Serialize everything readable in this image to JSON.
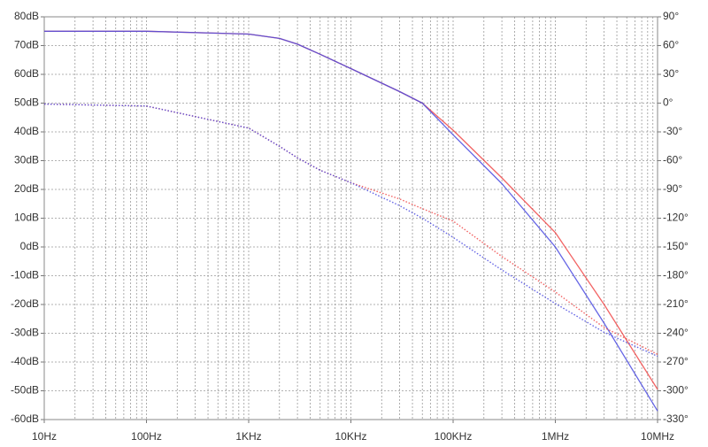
{
  "chart_data": {
    "type": "line",
    "log_x": true,
    "grid": true,
    "x": [
      10,
      100,
      1000,
      2000,
      3000,
      5000,
      10000,
      30000,
      50000,
      100000,
      300000,
      1000000,
      3000000,
      10000000
    ],
    "xlim": [
      10,
      10000000
    ],
    "xticks": [
      {
        "value": 10,
        "label": "10Hz"
      },
      {
        "value": 100,
        "label": "100Hz"
      },
      {
        "value": 1000,
        "label": "1KHz"
      },
      {
        "value": 10000,
        "label": "10KHz"
      },
      {
        "value": 100000,
        "label": "100KHz"
      },
      {
        "value": 1000000,
        "label": "1MHz"
      },
      {
        "value": 10000000,
        "label": "10MHz"
      }
    ],
    "ylim": [
      -60,
      80
    ],
    "yticks": [
      {
        "value": 80,
        "label": "80dB"
      },
      {
        "value": 70,
        "label": "70dB"
      },
      {
        "value": 60,
        "label": "60dB"
      },
      {
        "value": 50,
        "label": "50dB"
      },
      {
        "value": 40,
        "label": "40dB"
      },
      {
        "value": 30,
        "label": "30dB"
      },
      {
        "value": 20,
        "label": "20dB"
      },
      {
        "value": 10,
        "label": "10dB"
      },
      {
        "value": 0,
        "label": "0dB"
      },
      {
        "value": -10,
        "label": "-10dB"
      },
      {
        "value": -20,
        "label": "-20dB"
      },
      {
        "value": -30,
        "label": "-30dB"
      },
      {
        "value": -40,
        "label": "-40dB"
      },
      {
        "value": -50,
        "label": "-50dB"
      },
      {
        "value": -60,
        "label": "-60dB"
      }
    ],
    "y2lim": [
      -330,
      90
    ],
    "y2ticks": [
      {
        "value": 90,
        "label": "90°"
      },
      {
        "value": 60,
        "label": "60°"
      },
      {
        "value": 30,
        "label": "30°"
      },
      {
        "value": 0,
        "label": "0°"
      },
      {
        "value": -30,
        "label": "-30°"
      },
      {
        "value": -60,
        "label": "-60°"
      },
      {
        "value": -90,
        "label": "-90°"
      },
      {
        "value": -120,
        "label": "-120°"
      },
      {
        "value": -150,
        "label": "-150°"
      },
      {
        "value": -180,
        "label": "-180°"
      },
      {
        "value": -210,
        "label": "-210°"
      },
      {
        "value": -240,
        "label": "-240°"
      },
      {
        "value": -270,
        "label": "-270°"
      },
      {
        "value": -300,
        "label": "-300°"
      },
      {
        "value": -330,
        "label": "-330°"
      }
    ],
    "series": [
      {
        "color": "#f04848",
        "style": "solid",
        "values": [
          75,
          75,
          74,
          72.5,
          70.5,
          67,
          62,
          54,
          50,
          40.6,
          24,
          5,
          -20,
          -49.5
        ]
      },
      {
        "color": "#4a4ae0",
        "style": "solid",
        "values": [
          75,
          75,
          74,
          72.5,
          70.5,
          67,
          62,
          54,
          50,
          39,
          22,
          0,
          -26.5,
          -57
        ]
      },
      {
        "color": "#f04848",
        "style": "dotted",
        "axis": "y2",
        "values": [
          -1,
          -3,
          -26,
          -45,
          -57,
          -70,
          -83,
          -100,
          -110,
          -123,
          -160,
          -197,
          -234,
          -262
        ]
      },
      {
        "color": "#4a4ae0",
        "style": "dotted",
        "axis": "y2",
        "values": [
          -1,
          -3,
          -26,
          -45,
          -57,
          -70,
          -83,
          -107,
          -120,
          -140,
          -174,
          -209,
          -239,
          -264
        ]
      }
    ]
  }
}
